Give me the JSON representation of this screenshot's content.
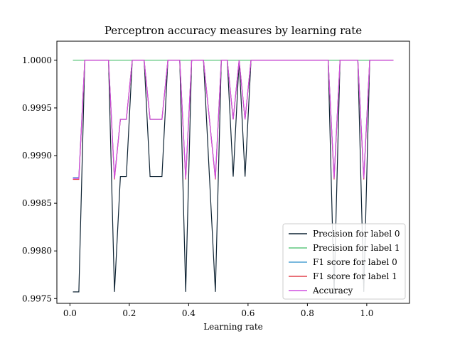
{
  "chart_data": {
    "type": "line",
    "title": "Perceptron accuracy measures by learning rate",
    "xlabel": "Learning rate",
    "ylabel": "",
    "xlim": [
      -0.044,
      1.144
    ],
    "ylim": [
      0.99745,
      1.0002
    ],
    "xticks": [
      0.0,
      0.2,
      0.4,
      0.6,
      0.8,
      1.0
    ],
    "xtick_labels": [
      "0.0",
      "0.2",
      "0.4",
      "0.6",
      "0.8",
      "1.0"
    ],
    "yticks": [
      0.9975,
      0.998,
      0.9985,
      0.999,
      0.9995,
      1.0
    ],
    "ytick_labels": [
      "0.9975",
      "0.9980",
      "0.9985",
      "0.9990",
      "0.9995",
      "1.0000"
    ],
    "legend_position": "lower-right",
    "x": [
      0.01,
      0.03,
      0.05,
      0.07,
      0.09,
      0.11,
      0.13,
      0.15,
      0.17,
      0.19,
      0.21,
      0.23,
      0.25,
      0.27,
      0.29,
      0.31,
      0.33,
      0.35,
      0.37,
      0.39,
      0.41,
      0.43,
      0.45,
      0.47,
      0.49,
      0.51,
      0.53,
      0.55,
      0.57,
      0.59,
      0.61,
      0.63,
      0.65,
      0.67,
      0.69,
      0.71,
      0.73,
      0.75,
      0.77,
      0.79,
      0.81,
      0.83,
      0.85,
      0.87,
      0.89,
      0.91,
      0.93,
      0.95,
      0.97,
      0.99,
      1.01,
      1.03,
      1.05,
      1.07,
      1.09
    ],
    "series": [
      {
        "name": "Precision for label 0",
        "color": "#0e2333",
        "values": [
          0.99757,
          0.99757,
          1.0,
          1.0,
          1.0,
          1.0,
          1.0,
          0.99757,
          0.99878,
          0.99878,
          1.0,
          1.0,
          1.0,
          0.99878,
          0.99878,
          0.99878,
          1.0,
          1.0,
          1.0,
          0.99757,
          1.0,
          1.0,
          1.0,
          0.99878,
          0.99757,
          1.0,
          1.0,
          0.99878,
          1.0,
          0.99878,
          1.0,
          1.0,
          1.0,
          1.0,
          1.0,
          1.0,
          1.0,
          1.0,
          1.0,
          1.0,
          1.0,
          1.0,
          1.0,
          1.0,
          0.99757,
          1.0,
          1.0,
          1.0,
          1.0,
          0.99757,
          1.0,
          1.0,
          1.0,
          1.0,
          1.0
        ]
      },
      {
        "name": "Precision for label 1",
        "color": "#5fc77e",
        "values": [
          1.0,
          1.0,
          1.0,
          1.0,
          1.0,
          1.0,
          1.0,
          1.0,
          1.0,
          1.0,
          1.0,
          1.0,
          1.0,
          1.0,
          1.0,
          1.0,
          1.0,
          1.0,
          1.0,
          1.0,
          1.0,
          1.0,
          1.0,
          1.0,
          1.0,
          1.0,
          1.0,
          1.0,
          1.0,
          1.0,
          1.0,
          1.0,
          1.0,
          1.0,
          1.0,
          1.0,
          1.0,
          1.0,
          1.0,
          1.0,
          1.0,
          1.0,
          1.0,
          1.0,
          1.0,
          1.0,
          1.0,
          1.0,
          1.0,
          1.0,
          1.0,
          1.0,
          1.0,
          1.0,
          1.0
        ]
      },
      {
        "name": "F1 score for label 0",
        "color": "#4fa2d4",
        "values": [
          0.99877,
          0.99877,
          1.0,
          1.0,
          1.0,
          1.0,
          1.0,
          0.99877,
          0.99938,
          0.99938,
          1.0,
          1.0,
          1.0,
          0.99938,
          0.99938,
          0.99938,
          1.0,
          1.0,
          1.0,
          0.99877,
          1.0,
          1.0,
          1.0,
          0.99938,
          0.99877,
          1.0,
          1.0,
          0.99938,
          1.0,
          0.99938,
          1.0,
          1.0,
          1.0,
          1.0,
          1.0,
          1.0,
          1.0,
          1.0,
          1.0,
          1.0,
          1.0,
          1.0,
          1.0,
          1.0,
          0.99877,
          1.0,
          1.0,
          1.0,
          1.0,
          0.99877,
          1.0,
          1.0,
          1.0,
          1.0,
          1.0
        ]
      },
      {
        "name": "F1 score for label 1",
        "color": "#e2414b",
        "values": [
          0.99875,
          0.99875,
          1.0,
          1.0,
          1.0,
          1.0,
          1.0,
          0.99875,
          0.99938,
          0.99938,
          1.0,
          1.0,
          1.0,
          0.99938,
          0.99938,
          0.99938,
          1.0,
          1.0,
          1.0,
          0.99875,
          1.0,
          1.0,
          1.0,
          0.99938,
          0.99875,
          1.0,
          1.0,
          0.99938,
          1.0,
          0.99938,
          1.0,
          1.0,
          1.0,
          1.0,
          1.0,
          1.0,
          1.0,
          1.0,
          1.0,
          1.0,
          1.0,
          1.0,
          1.0,
          1.0,
          0.99875,
          1.0,
          1.0,
          1.0,
          1.0,
          0.99875,
          1.0,
          1.0,
          1.0,
          1.0,
          1.0
        ]
      },
      {
        "name": "Accuracy",
        "color": "#cf4ee0",
        "values": [
          0.99876,
          0.99876,
          1.0,
          1.0,
          1.0,
          1.0,
          1.0,
          0.99876,
          0.99938,
          0.99938,
          1.0,
          1.0,
          1.0,
          0.99938,
          0.99938,
          0.99938,
          1.0,
          1.0,
          1.0,
          0.99876,
          1.0,
          1.0,
          1.0,
          0.99938,
          0.99876,
          1.0,
          1.0,
          0.99938,
          1.0,
          0.99938,
          1.0,
          1.0,
          1.0,
          1.0,
          1.0,
          1.0,
          1.0,
          1.0,
          1.0,
          1.0,
          1.0,
          1.0,
          1.0,
          1.0,
          0.99876,
          1.0,
          1.0,
          1.0,
          1.0,
          0.99876,
          1.0,
          1.0,
          1.0,
          1.0,
          1.0
        ]
      }
    ]
  }
}
